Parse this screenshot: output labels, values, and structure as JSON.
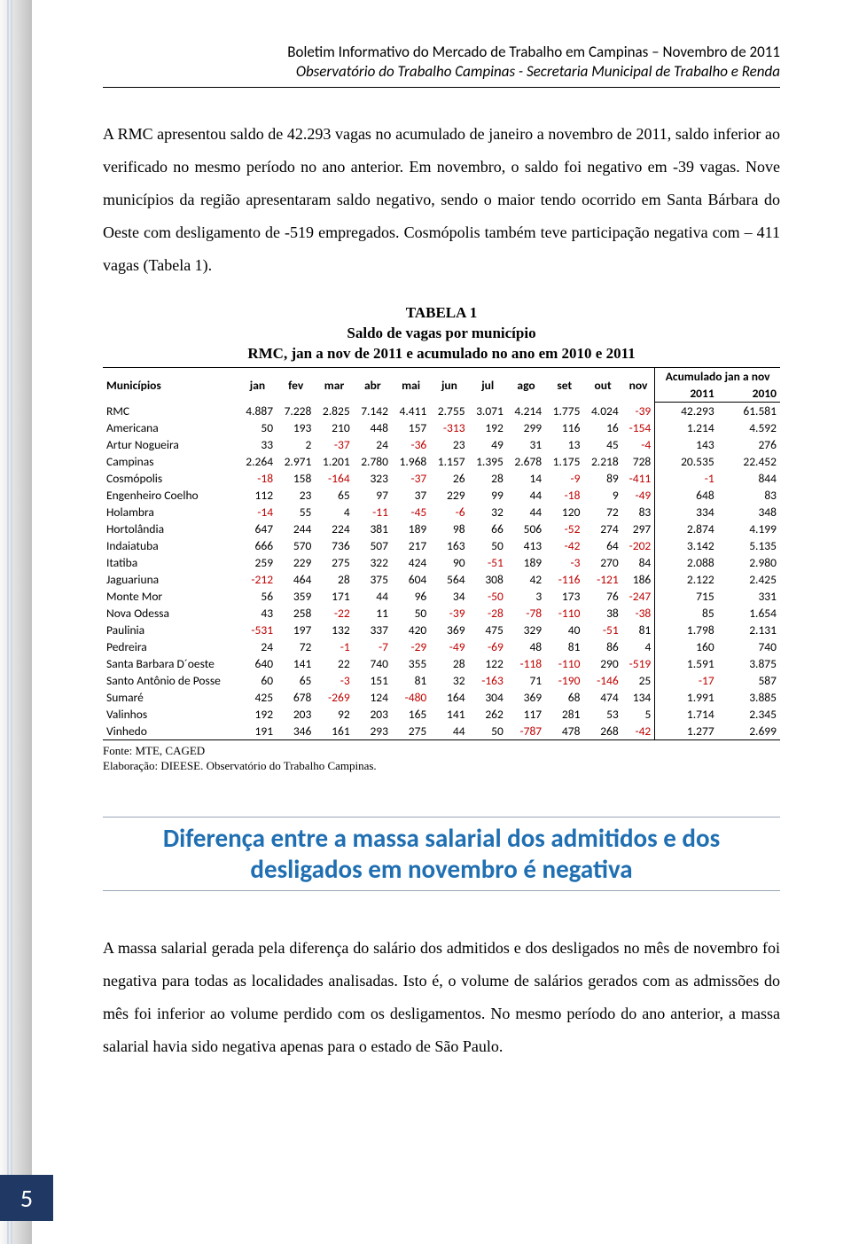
{
  "header": {
    "line1": "Boletim Informativo do Mercado de Trabalho em Campinas – Novembro de 2011",
    "line2": "Observatório do Trabalho Campinas - Secretaria Municipal de Trabalho e Renda"
  },
  "paragraph1": "A RMC apresentou saldo de 42.293 vagas no acumulado de janeiro a novembro de 2011, saldo inferior ao verificado no mesmo período no ano anterior. Em novembro, o saldo foi negativo em -39 vagas. Nove municípios da região apresentaram saldo negativo, sendo o maior tendo ocorrido em Santa Bárbara do Oeste com desligamento de -519 empregados. Cosmópolis também teve participação negativa com – 411 vagas (Tabela 1).",
  "table": {
    "title_l1": "TABELA 1",
    "title_l2": "Saldo de vagas por município",
    "title_l3": "RMC, jan a nov de 2011 e acumulado no ano em 2010 e 2011",
    "col_mun": "Municípios",
    "months": [
      "jan",
      "fev",
      "mar",
      "abr",
      "mai",
      "jun",
      "jul",
      "ago",
      "set",
      "out",
      "nov"
    ],
    "acc_header": "Acumulado jan a nov",
    "years": [
      "2011",
      "2010"
    ],
    "neg_color": "#c00000",
    "font_size": 13.5,
    "rows": [
      {
        "name": "RMC",
        "v": [
          "4.887",
          "7.228",
          "2.825",
          "7.142",
          "4.411",
          "2.755",
          "3.071",
          "4.214",
          "1.775",
          "4.024",
          "-39"
        ],
        "a": [
          "42.293",
          "61.581"
        ]
      },
      {
        "name": "Americana",
        "v": [
          "50",
          "193",
          "210",
          "448",
          "157",
          "-313",
          "192",
          "299",
          "116",
          "16",
          "-154"
        ],
        "a": [
          "1.214",
          "4.592"
        ]
      },
      {
        "name": "Artur Nogueira",
        "v": [
          "33",
          "2",
          "-37",
          "24",
          "-36",
          "23",
          "49",
          "31",
          "13",
          "45",
          "-4"
        ],
        "a": [
          "143",
          "276"
        ]
      },
      {
        "name": "Campinas",
        "v": [
          "2.264",
          "2.971",
          "1.201",
          "2.780",
          "1.968",
          "1.157",
          "1.395",
          "2.678",
          "1.175",
          "2.218",
          "728"
        ],
        "a": [
          "20.535",
          "22.452"
        ]
      },
      {
        "name": "Cosmópolis",
        "v": [
          "-18",
          "158",
          "-164",
          "323",
          "-37",
          "26",
          "28",
          "14",
          "-9",
          "89",
          "-411"
        ],
        "a": [
          "-1",
          "844"
        ]
      },
      {
        "name": "Engenheiro Coelho",
        "v": [
          "112",
          "23",
          "65",
          "97",
          "37",
          "229",
          "99",
          "44",
          "-18",
          "9",
          "-49"
        ],
        "a": [
          "648",
          "83"
        ]
      },
      {
        "name": "Holambra",
        "v": [
          "-14",
          "55",
          "4",
          "-11",
          "-45",
          "-6",
          "32",
          "44",
          "120",
          "72",
          "83"
        ],
        "a": [
          "334",
          "348"
        ]
      },
      {
        "name": "Hortolândia",
        "v": [
          "647",
          "244",
          "224",
          "381",
          "189",
          "98",
          "66",
          "506",
          "-52",
          "274",
          "297"
        ],
        "a": [
          "2.874",
          "4.199"
        ]
      },
      {
        "name": "Indaiatuba",
        "v": [
          "666",
          "570",
          "736",
          "507",
          "217",
          "163",
          "50",
          "413",
          "-42",
          "64",
          "-202"
        ],
        "a": [
          "3.142",
          "5.135"
        ]
      },
      {
        "name": "Itatiba",
        "v": [
          "259",
          "229",
          "275",
          "322",
          "424",
          "90",
          "-51",
          "189",
          "-3",
          "270",
          "84"
        ],
        "a": [
          "2.088",
          "2.980"
        ]
      },
      {
        "name": "Jaguariuna",
        "v": [
          "-212",
          "464",
          "28",
          "375",
          "604",
          "564",
          "308",
          "42",
          "-116",
          "-121",
          "186"
        ],
        "a": [
          "2.122",
          "2.425"
        ]
      },
      {
        "name": "Monte Mor",
        "v": [
          "56",
          "359",
          "171",
          "44",
          "96",
          "34",
          "-50",
          "3",
          "173",
          "76",
          "-247"
        ],
        "a": [
          "715",
          "331"
        ]
      },
      {
        "name": "Nova Odessa",
        "v": [
          "43",
          "258",
          "-22",
          "11",
          "50",
          "-39",
          "-28",
          "-78",
          "-110",
          "38",
          "-38"
        ],
        "a": [
          "85",
          "1.654"
        ]
      },
      {
        "name": "Paulinia",
        "v": [
          "-531",
          "197",
          "132",
          "337",
          "420",
          "369",
          "475",
          "329",
          "40",
          "-51",
          "81"
        ],
        "a": [
          "1.798",
          "2.131"
        ]
      },
      {
        "name": "Pedreira",
        "v": [
          "24",
          "72",
          "-1",
          "-7",
          "-29",
          "-49",
          "-69",
          "48",
          "81",
          "86",
          "4"
        ],
        "a": [
          "160",
          "740"
        ]
      },
      {
        "name": "Santa Barbara D´oeste",
        "v": [
          "640",
          "141",
          "22",
          "740",
          "355",
          "28",
          "122",
          "-118",
          "-110",
          "290",
          "-519"
        ],
        "a": [
          "1.591",
          "3.875"
        ]
      },
      {
        "name": "Santo Antônio de Posse",
        "v": [
          "60",
          "65",
          "-3",
          "151",
          "81",
          "32",
          "-163",
          "71",
          "-190",
          "-146",
          "25"
        ],
        "a": [
          "-17",
          "587"
        ]
      },
      {
        "name": "Sumaré",
        "v": [
          "425",
          "678",
          "-269",
          "124",
          "-480",
          "164",
          "304",
          "369",
          "68",
          "474",
          "134"
        ],
        "a": [
          "1.991",
          "3.885"
        ]
      },
      {
        "name": "Valinhos",
        "v": [
          "192",
          "203",
          "92",
          "203",
          "165",
          "141",
          "262",
          "117",
          "281",
          "53",
          "5"
        ],
        "a": [
          "1.714",
          "2.345"
        ]
      },
      {
        "name": "Vinhedo",
        "v": [
          "191",
          "346",
          "161",
          "293",
          "275",
          "44",
          "50",
          "-787",
          "478",
          "268",
          "-42"
        ],
        "a": [
          "1.277",
          "2.699"
        ]
      }
    ],
    "source1": "Fonte: MTE, CAGED",
    "source2": "Elaboração: DIEESE. Observatório do Trabalho Campinas."
  },
  "section_title": "Diferença entre a massa salarial dos admitidos e dos desligados em novembro é negativa",
  "paragraph2": "A massa salarial gerada pela diferença do salário dos admitidos e dos desligados no mês de novembro foi negativa para todas as localidades analisadas. Isto é, o volume de salários gerados com as admissões do mês foi inferior ao volume perdido com os desligamentos. No mesmo período do ano anterior, a massa salarial havia sido negativa apenas para o estado de São Paulo.",
  "page_number": "5",
  "colors": {
    "section_title": "#1f6fb2",
    "page_num_bg": "#1f3864",
    "rule": "#9aa7b8"
  }
}
